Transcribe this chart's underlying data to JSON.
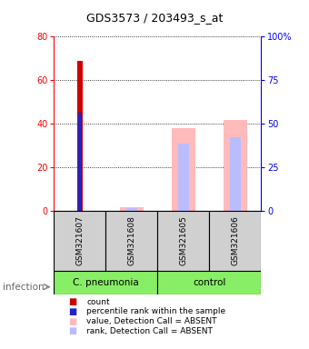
{
  "title": "GDS3573 / 203493_s_at",
  "samples": [
    "GSM321607",
    "GSM321608",
    "GSM321605",
    "GSM321606"
  ],
  "red_bars": [
    69,
    0,
    0,
    0
  ],
  "blue_bars": [
    45,
    0,
    0,
    0
  ],
  "pink_bars": [
    0,
    2,
    38,
    42
  ],
  "lavender_bars": [
    0,
    1.5,
    31,
    34
  ],
  "ylim_left": [
    0,
    80
  ],
  "ylim_right": [
    0,
    100
  ],
  "left_ticks": [
    0,
    20,
    40,
    60,
    80
  ],
  "right_ticks": [
    0,
    25,
    50,
    75,
    100
  ],
  "right_tick_labels": [
    "0",
    "25",
    "50",
    "75",
    "100%"
  ],
  "red_color": "#cc0000",
  "blue_color": "#2222cc",
  "pink_color": "#ffbbbb",
  "lavender_color": "#bbbbff",
  "group_labels": [
    "C. pneumonia",
    "control"
  ],
  "group_colors": [
    "#99ee77",
    "#99ee77"
  ],
  "infection_label": "infection",
  "legend_items": [
    {
      "color": "#cc0000",
      "label": "count"
    },
    {
      "color": "#2222cc",
      "label": "percentile rank within the sample"
    },
    {
      "color": "#ffbbbb",
      "label": "value, Detection Call = ABSENT"
    },
    {
      "color": "#bbbbff",
      "label": "rank, Detection Call = ABSENT"
    }
  ]
}
